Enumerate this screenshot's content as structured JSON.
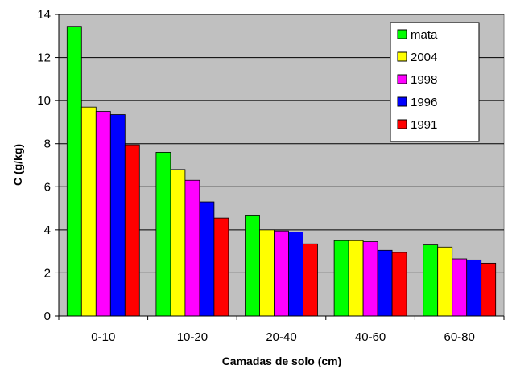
{
  "chart_data": {
    "type": "bar",
    "title": "",
    "xlabel": "Camadas de solo (cm)",
    "ylabel": "C (g/kg)",
    "ylim": [
      0,
      14
    ],
    "yticks": [
      0,
      2,
      4,
      6,
      8,
      10,
      12,
      14
    ],
    "grid": true,
    "legend_position": "top-right",
    "plot_background": "#c0c0c0",
    "categories": [
      "0-10",
      "10-20",
      "20-40",
      "40-60",
      "60-80"
    ],
    "series": [
      {
        "name": "mata",
        "color": "#00ff00",
        "values": [
          13.45,
          7.6,
          4.65,
          3.5,
          3.3
        ]
      },
      {
        "name": "2004",
        "color": "#ffff00",
        "values": [
          9.7,
          6.8,
          4.0,
          3.5,
          3.2
        ]
      },
      {
        "name": "1998",
        "color": "#ff00ff",
        "values": [
          9.5,
          6.3,
          3.95,
          3.45,
          2.65
        ]
      },
      {
        "name": "1996",
        "color": "#0000ff",
        "values": [
          9.35,
          5.3,
          3.9,
          3.05,
          2.6
        ]
      },
      {
        "name": "1991",
        "color": "#ff0000",
        "values": [
          7.95,
          4.55,
          3.35,
          2.95,
          2.45
        ]
      }
    ]
  }
}
